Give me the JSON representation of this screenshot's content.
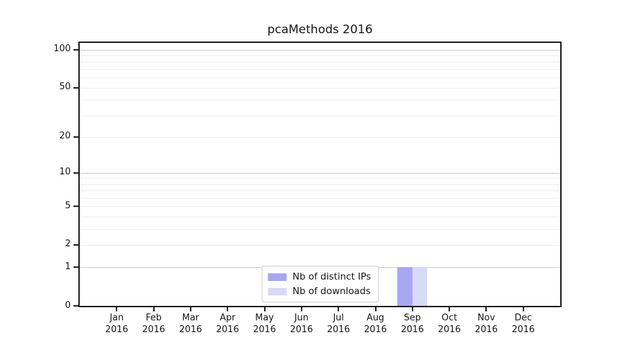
{
  "chart_data": {
    "type": "bar",
    "title": "pcaMethods 2016",
    "categories": [
      "Jan",
      "Feb",
      "Mar",
      "Apr",
      "May",
      "Jun",
      "Jul",
      "Aug",
      "Sep",
      "Oct",
      "Nov",
      "Dec"
    ],
    "x_year_label": "2016",
    "series": [
      {
        "name": "Nb of distinct IPs",
        "color": "#a7a7f0",
        "values": [
          0,
          0,
          0,
          0,
          0,
          0,
          0,
          0,
          1,
          0,
          0,
          0
        ]
      },
      {
        "name": "Nb of downloads",
        "color": "#d9d9f8",
        "values": [
          0,
          0,
          0,
          0,
          0,
          0,
          0,
          0,
          1,
          0,
          0,
          0
        ]
      }
    ],
    "y_scale": "log1p",
    "y_tick_labels": [
      0,
      1,
      2,
      5,
      10,
      20,
      50,
      100
    ],
    "y_major_gridlines": [
      1,
      10,
      100
    ],
    "y_minor_gridlines": [
      2,
      3,
      4,
      5,
      6,
      7,
      8,
      9,
      20,
      30,
      40,
      50,
      60,
      70,
      80,
      90
    ],
    "ylim": [
      0,
      113
    ],
    "grid": "horizontal",
    "legend_position": "lower center"
  },
  "colors": {
    "background": "#ffffff",
    "axis": "#1a1a1a",
    "major_grid": "#c8c8c8",
    "minor_grid": "#ededed",
    "text": "#151515"
  }
}
